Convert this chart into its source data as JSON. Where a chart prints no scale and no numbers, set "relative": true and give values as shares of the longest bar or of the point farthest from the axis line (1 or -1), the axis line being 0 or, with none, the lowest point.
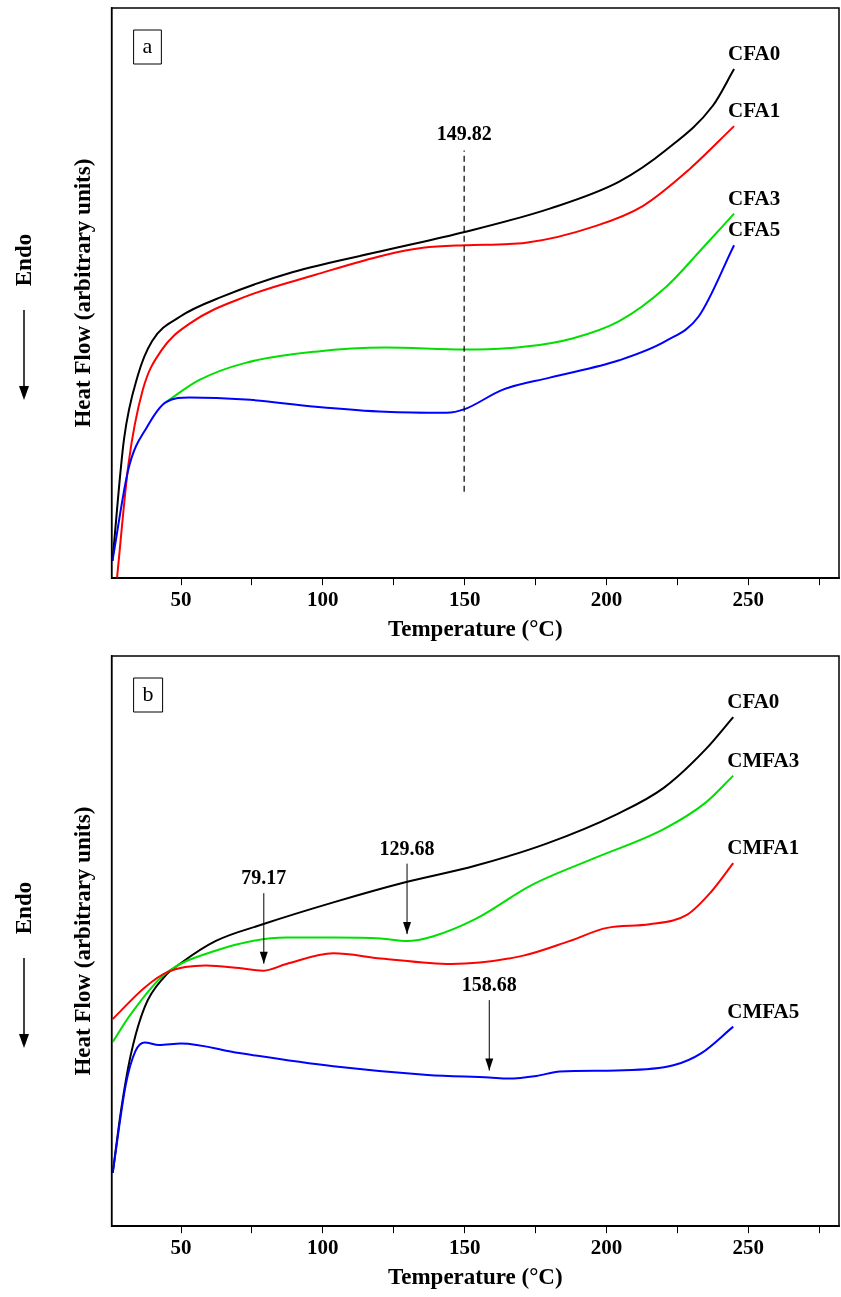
{
  "chart_data": [
    {
      "type": "line",
      "relative": true,
      "marker": "none",
      "xlabel": "Temperature (°C)",
      "ylabel": "Heat Flow (arbitrary units)",
      "xlim": [
        25.5,
        282
      ],
      "xticks": [
        50,
        {
          "value": 75,
          "label": null
        },
        100,
        {
          "value": 125,
          "label": null
        },
        150,
        {
          "value": 175,
          "label": null
        },
        200,
        {
          "value": 225,
          "label": null
        },
        250,
        {
          "value": 275,
          "label": null
        }
      ],
      "annotations": [
        "a",
        "Endo"
      ],
      "ref_lines": [
        {
          "axis": "x",
          "value": 149.82,
          "label": "149.82",
          "line_style": "dashed",
          "color": "#000000"
        }
      ],
      "series": [
        {
          "name": "CFA0",
          "color": "#000000",
          "x": [
            25.8,
            29.9,
            34.8,
            39.8,
            49.7,
            64.5,
            89.2,
            122,
            150,
            180,
            204.5,
            221,
            237.5,
            245
          ],
          "values": [
            0.034,
            0.274,
            0.399,
            0.466,
            0.514,
            0.553,
            0.601,
            0.644,
            0.68,
            0.726,
            0.779,
            0.841,
            0.928,
            1.0
          ]
        },
        {
          "name": "CFA1",
          "color": "#ff0000",
          "x": [
            27.4,
            31.5,
            36.5,
            43,
            53,
            72.7,
            97.4,
            122,
            135.3,
            150,
            171.6,
            196.3,
            212.8,
            229.2,
            245
          ],
          "values": [
            0,
            0.226,
            0.37,
            0.447,
            0.5,
            0.553,
            0.596,
            0.635,
            0.649,
            0.654,
            0.659,
            0.692,
            0.731,
            0.803,
            0.888
          ]
        },
        {
          "name": "CFA3",
          "color": "#00e000",
          "x": [
            44.7,
            56.3,
            72.7,
            97.4,
            122,
            150,
            171.6,
            188,
            204.5,
            221,
            234,
            245
          ],
          "values": [
            0.346,
            0.389,
            0.423,
            0.445,
            0.453,
            0.449,
            0.455,
            0.471,
            0.505,
            0.572,
            0.649,
            0.716
          ]
        },
        {
          "name": "CFA5",
          "color": "#0000ff",
          "x": [
            25.8,
            31.5,
            38.1,
            44.7,
            53,
            72.7,
            97.4,
            122,
            143.6,
            150,
            163.3,
            180,
            204.5,
            221,
            232.5,
            245
          ],
          "values": [
            0.034,
            0.216,
            0.298,
            0.346,
            0.355,
            0.351,
            0.337,
            0.327,
            0.325,
            0.332,
            0.37,
            0.394,
            0.428,
            0.466,
            0.514,
            0.654
          ]
        }
      ]
    },
    {
      "type": "line",
      "relative": true,
      "marker": "none",
      "xlabel": "Temperature (°C)",
      "ylabel": "Heat Flow (arbitrary units)",
      "xlim": [
        25.5,
        282
      ],
      "xticks": [
        50,
        {
          "value": 75,
          "label": null
        },
        100,
        {
          "value": 125,
          "label": null
        },
        150,
        {
          "value": 175,
          "label": null
        },
        200,
        {
          "value": 225,
          "label": null
        },
        250,
        {
          "value": 275,
          "label": null
        }
      ],
      "annotations": [
        "b",
        "Endo",
        {
          "text": "79.17",
          "x": 79.17,
          "y": 0.502
        },
        {
          "text": "129.68",
          "x": 129.68,
          "y": 0.56
        },
        {
          "text": "158.68",
          "x": 158.68,
          "y": 0.292
        }
      ],
      "series": [
        {
          "name": "CFA0",
          "color": "#000000",
          "x": [
            25.9,
            28.9,
            32.2,
            37.2,
            43.8,
            50,
            62.1,
            78.8,
            103.7,
            128.7,
            153.7,
            178.6,
            203.6,
            220.2,
            235.2,
            244.7
          ],
          "values": [
            0.105,
            0.23,
            0.335,
            0.431,
            0.488,
            0.517,
            0.56,
            0.593,
            0.636,
            0.675,
            0.708,
            0.751,
            0.809,
            0.861,
            0.938,
            1.0
          ]
        },
        {
          "name": "CMFA3",
          "color": "#00e000",
          "x": [
            25.9,
            32.2,
            43.8,
            62.1,
            87.1,
            103.7,
            120.4,
            129.68,
            138.7,
            153.7,
            173.6,
            195.3,
            220.2,
            235.2,
            244.7
          ],
          "values": [
            0.362,
            0.416,
            0.493,
            0.541,
            0.567,
            0.567,
            0.565,
            0.56,
            0.569,
            0.603,
            0.67,
            0.722,
            0.78,
            0.833,
            0.885
          ]
        },
        {
          "name": "CMFA1",
          "color": "#ff0000",
          "x": [
            25.9,
            37.2,
            45.5,
            58.8,
            70.5,
            79.17,
            87.1,
            103.7,
            120.4,
            145.3,
            170.3,
            186.9,
            200.2,
            215.2,
            228.5,
            236.8,
            244.7
          ],
          "values": [
            0.407,
            0.469,
            0.5,
            0.512,
            0.507,
            0.502,
            0.515,
            0.536,
            0.526,
            0.515,
            0.531,
            0.56,
            0.586,
            0.593,
            0.612,
            0.656,
            0.713
          ]
        },
        {
          "name": "CMFA5",
          "color": "#0000ff",
          "x": [
            25.9,
            30.5,
            33.9,
            37.2,
            42.2,
            50,
            70.5,
            103.7,
            137,
            158.68,
            165.3,
            175.3,
            183.6,
            203.6,
            223.6,
            233.5,
            244.7
          ],
          "values": [
            0.105,
            0.278,
            0.344,
            0.361,
            0.356,
            0.359,
            0.34,
            0.314,
            0.297,
            0.292,
            0.29,
            0.295,
            0.304,
            0.306,
            0.316,
            0.34,
            0.392
          ]
        }
      ]
    }
  ]
}
